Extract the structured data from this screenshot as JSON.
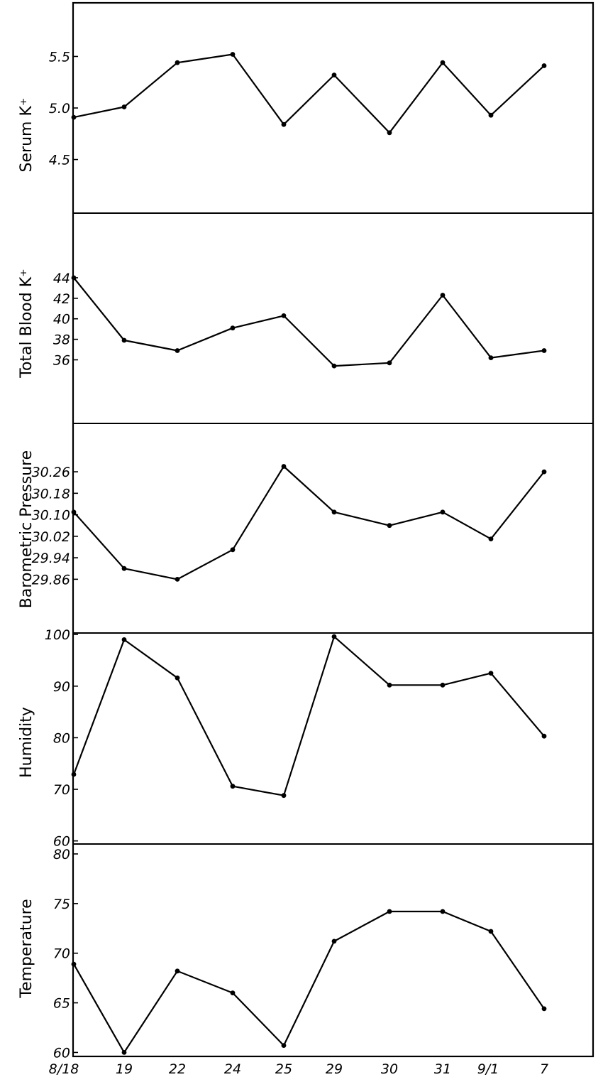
{
  "chart_data": {
    "type": "line",
    "x_categories": [
      "8/18",
      "19",
      "22",
      "24",
      "25",
      "29",
      "30",
      "31",
      "9/1",
      "7"
    ],
    "panels": [
      {
        "ylabel": "Serum K⁺",
        "yticks": [
          "5.5",
          "5.0",
          "4.5"
        ],
        "tick_values": [
          5.5,
          5.0,
          4.5
        ],
        "ylim": [
          3.98,
          6.02
        ],
        "values": [
          4.91,
          5.01,
          5.44,
          5.52,
          4.84,
          5.32,
          4.76,
          5.44,
          4.93,
          5.41
        ]
      },
      {
        "ylabel": "Total Blood K⁺",
        "yticks": [
          "44",
          "42",
          "40",
          "38",
          "36"
        ],
        "tick_values": [
          44,
          42,
          40,
          38,
          36
        ],
        "ylim": [
          29.8,
          50.3
        ],
        "values": [
          44.0,
          37.9,
          36.9,
          39.1,
          40.3,
          35.4,
          35.7,
          42.3,
          36.2,
          36.9
        ]
      },
      {
        "ylabel": "Barometric Pressure",
        "yticks": [
          "30.26",
          "30.18",
          "30.10",
          "30.02",
          "29.94",
          "29.86"
        ],
        "tick_values": [
          30.26,
          30.18,
          30.1,
          30.02,
          29.94,
          29.86
        ],
        "ylim": [
          29.66,
          30.44
        ],
        "values": [
          30.11,
          29.9,
          29.86,
          29.97,
          30.28,
          30.11,
          30.06,
          30.11,
          30.01,
          30.26
        ]
      },
      {
        "ylabel": "Humidity",
        "yticks": [
          "100",
          "90",
          "80",
          "70",
          "60"
        ],
        "tick_values": [
          100,
          90,
          80,
          70,
          60
        ],
        "ylim": [
          59.4,
          100.3
        ],
        "values": [
          72.9,
          99.0,
          91.6,
          70.6,
          68.8,
          99.6,
          90.2,
          90.2,
          92.5,
          80.3
        ]
      },
      {
        "ylabel": "Temperature",
        "yticks": [
          "80",
          "75",
          "70",
          "65",
          "60"
        ],
        "tick_values": [
          80,
          75,
          70,
          65,
          60
        ],
        "ylim": [
          59.6,
          81.0
        ],
        "values": [
          68.9,
          60.0,
          68.2,
          66.0,
          60.7,
          71.2,
          74.2,
          74.2,
          72.2,
          64.4
        ]
      }
    ]
  }
}
